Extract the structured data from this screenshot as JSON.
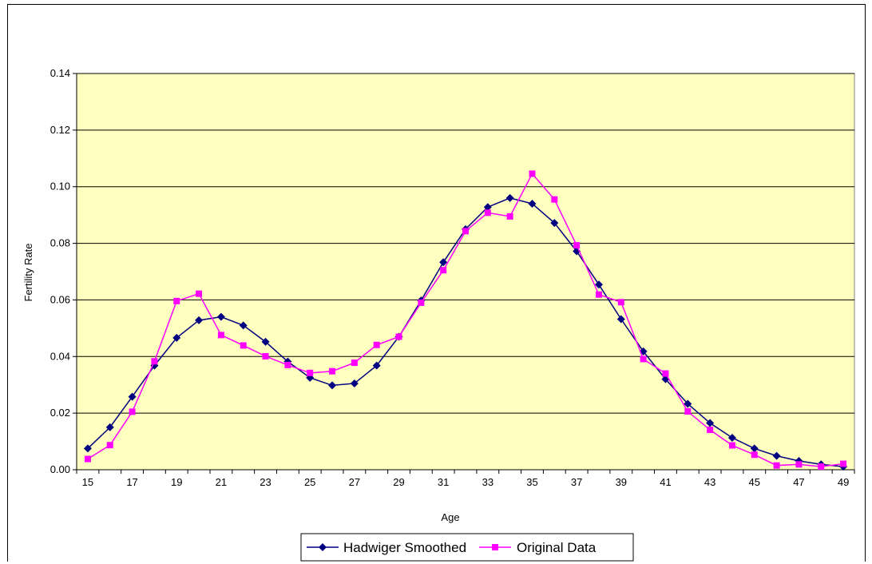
{
  "chart_data": {
    "type": "line",
    "title": "",
    "xlabel": "Age",
    "ylabel": "Fertility Rate",
    "xlim": [
      15,
      49
    ],
    "ylim": [
      0,
      0.14
    ],
    "y_ticks": [
      "0.00",
      "0.02",
      "0.04",
      "0.06",
      "0.08",
      "0.10",
      "0.12",
      "0.14"
    ],
    "x_ticks": [
      "15",
      "17",
      "19",
      "21",
      "23",
      "25",
      "27",
      "29",
      "31",
      "33",
      "35",
      "37",
      "39",
      "41",
      "43",
      "45",
      "47",
      "49"
    ],
    "grid": "horizontal",
    "legend_position": "bottom",
    "plot_background": "#ffffc0",
    "x": [
      15,
      16,
      17,
      18,
      19,
      20,
      21,
      22,
      23,
      24,
      25,
      26,
      27,
      28,
      29,
      30,
      31,
      32,
      33,
      34,
      35,
      36,
      37,
      38,
      39,
      40,
      41,
      42,
      43,
      44,
      45,
      46,
      47,
      48,
      49
    ],
    "series": [
      {
        "name": "Hadwiger Smoothed",
        "color": "#000080",
        "marker": "diamond",
        "values": [
          0.0075,
          0.015,
          0.0258,
          0.0368,
          0.0466,
          0.0528,
          0.054,
          0.051,
          0.0452,
          0.0382,
          0.0325,
          0.0298,
          0.0305,
          0.0368,
          0.047,
          0.0598,
          0.0733,
          0.085,
          0.0928,
          0.096,
          0.094,
          0.0872,
          0.0772,
          0.0654,
          0.0532,
          0.0418,
          0.032,
          0.0233,
          0.0165,
          0.0113,
          0.0075,
          0.0049,
          0.0031,
          0.0019,
          0.0011
        ]
      },
      {
        "name": "Original Data",
        "color": "#ff00ff",
        "marker": "square",
        "values": [
          0.0038,
          0.0087,
          0.0205,
          0.0383,
          0.0596,
          0.0622,
          0.0476,
          0.0439,
          0.0401,
          0.037,
          0.0342,
          0.0348,
          0.0378,
          0.0441,
          0.047,
          0.059,
          0.0705,
          0.0843,
          0.0908,
          0.0895,
          0.1046,
          0.0955,
          0.0793,
          0.0619,
          0.0592,
          0.0391,
          0.034,
          0.0206,
          0.0141,
          0.0086,
          0.0053,
          0.0015,
          0.0019,
          0.0011,
          0.0021
        ]
      }
    ]
  }
}
